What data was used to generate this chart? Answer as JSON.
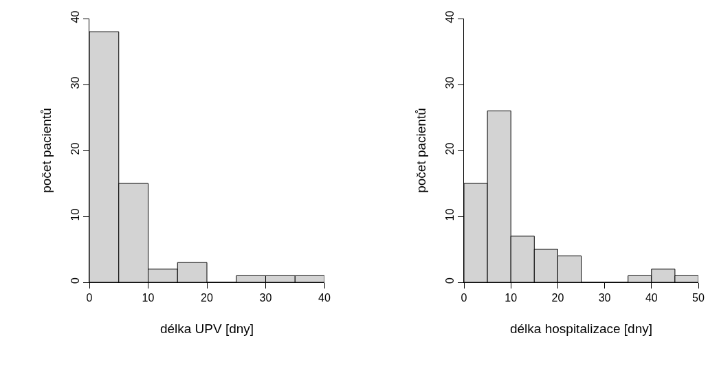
{
  "chart_data": [
    {
      "type": "histogram",
      "xlabel": "délka UPV [dny]",
      "ylabel": "počet pacientů",
      "bins": [
        0,
        5,
        10,
        15,
        20,
        25,
        30,
        35,
        40
      ],
      "values": [
        38,
        15,
        2,
        3,
        0,
        1,
        1,
        1
      ],
      "color": "#d3d3d3",
      "xlim": [
        0,
        40
      ],
      "xticks": [
        0,
        10,
        20,
        30,
        40
      ],
      "ylim": [
        0,
        40
      ],
      "yticks": [
        0,
        10,
        20,
        30,
        40
      ],
      "grid": false,
      "legend": false
    },
    {
      "type": "histogram",
      "xlabel": "délka hospitalizace [dny]",
      "ylabel": "počet pacientů",
      "bins": [
        0,
        5,
        10,
        15,
        20,
        25,
        30,
        35,
        40,
        45,
        50
      ],
      "values": [
        15,
        26,
        7,
        5,
        4,
        0,
        0,
        1,
        2,
        1
      ],
      "color": "#d3d3d3",
      "xlim": [
        0,
        50
      ],
      "xticks": [
        0,
        10,
        20,
        30,
        40,
        50
      ],
      "ylim": [
        0,
        40
      ],
      "yticks": [
        0,
        10,
        20,
        30,
        40
      ],
      "grid": false,
      "legend": false
    }
  ]
}
